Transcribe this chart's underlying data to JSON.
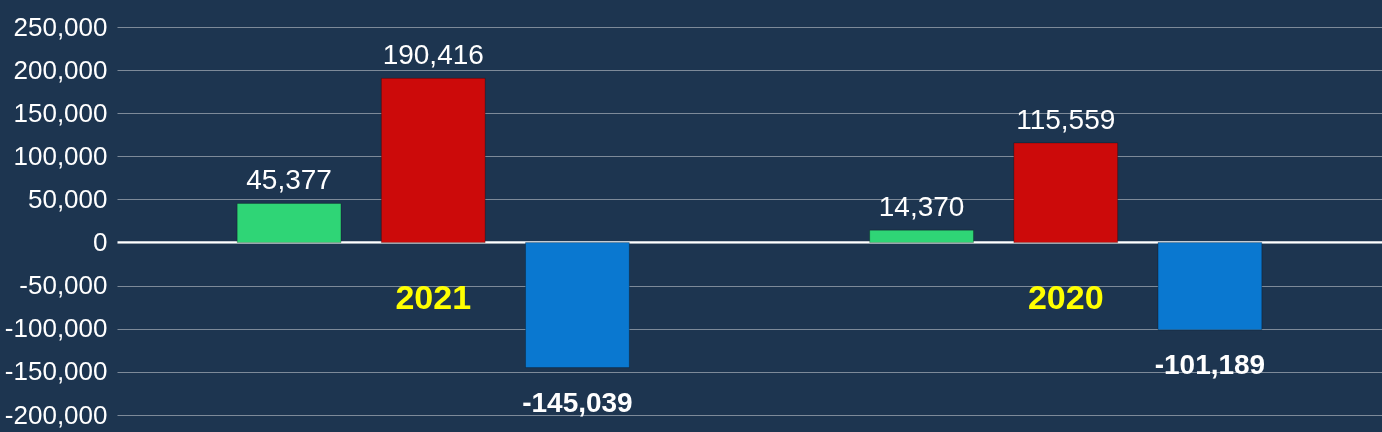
{
  "chart_data": {
    "type": "bar",
    "categories": [
      "2021",
      "2020"
    ],
    "series": [
      {
        "color": "#2fd576",
        "values": [
          45377,
          14370
        ],
        "value_labels": [
          "45,377",
          "14,370"
        ]
      },
      {
        "color": "#cc0a0a",
        "values": [
          190416,
          115559
        ],
        "value_labels": [
          "190,416",
          "115,559"
        ]
      },
      {
        "color": "#0a78d0",
        "values": [
          -145039,
          -101189
        ],
        "value_labels": [
          "-145,039",
          "-101,189"
        ]
      }
    ],
    "ylim": [
      -200000,
      250000
    ],
    "yticks": [
      {
        "value": -200000,
        "label": "-200,000"
      },
      {
        "value": -150000,
        "label": "-150,000"
      },
      {
        "value": -100000,
        "label": "-100,000"
      },
      {
        "value": -50000,
        "label": "-50,000"
      },
      0,
      {
        "value": 50000,
        "label": "50,000"
      },
      {
        "value": 100000,
        "label": "100,000"
      },
      {
        "value": 150000,
        "label": "150,000"
      },
      {
        "value": 200000,
        "label": "200,000"
      },
      {
        "value": 250000,
        "label": "250,000"
      }
    ],
    "grid": "y"
  }
}
